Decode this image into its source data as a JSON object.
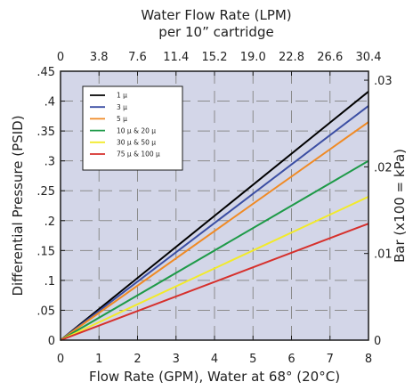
{
  "chart_data": {
    "type": "line",
    "title": "Water Flow Rate (LPM)",
    "subtitle": "per 10” cartridge",
    "xlabel": "Flow Rate (GPM), Water at 68° (20°C)",
    "ylabel": "Differential Pressure (PSID)",
    "y2label": "Bar (x100 = kPa)",
    "xlim": [
      0,
      8
    ],
    "ylim": [
      0,
      0.45
    ],
    "grid": true,
    "legend_position": "top-left",
    "plot_background": "#d3d6e8",
    "x_ticks": [
      "0",
      "1",
      "2",
      "3",
      "4",
      "5",
      "6",
      "7",
      "8"
    ],
    "y_ticks": [
      {
        "value": 0,
        "label": "0"
      },
      {
        "value": 0.05,
        "label": ".05"
      },
      {
        "value": 0.1,
        "label": ".1"
      },
      {
        "value": 0.15,
        "label": ".15"
      },
      {
        "value": 0.2,
        "label": ".2"
      },
      {
        "value": 0.25,
        "label": ".25"
      },
      {
        "value": 0.3,
        "label": ".3"
      },
      {
        "value": 0.35,
        "label": ".35"
      },
      {
        "value": 0.4,
        "label": ".4"
      },
      {
        "value": 0.45,
        "label": ".45"
      }
    ],
    "top_ticks": [
      {
        "value": 0,
        "label": "0"
      },
      {
        "value": 1,
        "label": "3.8"
      },
      {
        "value": 2,
        "label": "7.6"
      },
      {
        "value": 3,
        "label": "11.4"
      },
      {
        "value": 4,
        "label": "15.2"
      },
      {
        "value": 5,
        "label": "19.0"
      },
      {
        "value": 6,
        "label": "22.8"
      },
      {
        "value": 7,
        "label": "26.6"
      },
      {
        "value": 8,
        "label": "30.4"
      }
    ],
    "right_ticks": [
      {
        "value": 0.0,
        "label": "0"
      },
      {
        "value": 0.145,
        "label": ".01"
      },
      {
        "value": 0.29,
        "label": ".02"
      },
      {
        "value": 0.435,
        "label": ".03"
      }
    ],
    "series": [
      {
        "name": "1 µ",
        "color": "#000000",
        "x": [
          0,
          8
        ],
        "y": [
          0,
          0.416
        ]
      },
      {
        "name": "3 µ",
        "color": "#3b4ea3",
        "x": [
          0,
          8
        ],
        "y": [
          0,
          0.392
        ]
      },
      {
        "name": "5 µ",
        "color": "#f08a24",
        "x": [
          0,
          8
        ],
        "y": [
          0,
          0.365
        ]
      },
      {
        "name": "10 µ & 20 µ",
        "color": "#1e9a48",
        "x": [
          0,
          8
        ],
        "y": [
          0,
          0.3
        ]
      },
      {
        "name": "30 µ & 50 µ",
        "color": "#f2ea2a",
        "x": [
          0,
          8
        ],
        "y": [
          0,
          0.24
        ]
      },
      {
        "name": "75 µ & 100 µ",
        "color": "#d6302c",
        "x": [
          0,
          8
        ],
        "y": [
          0,
          0.195
        ]
      }
    ]
  }
}
